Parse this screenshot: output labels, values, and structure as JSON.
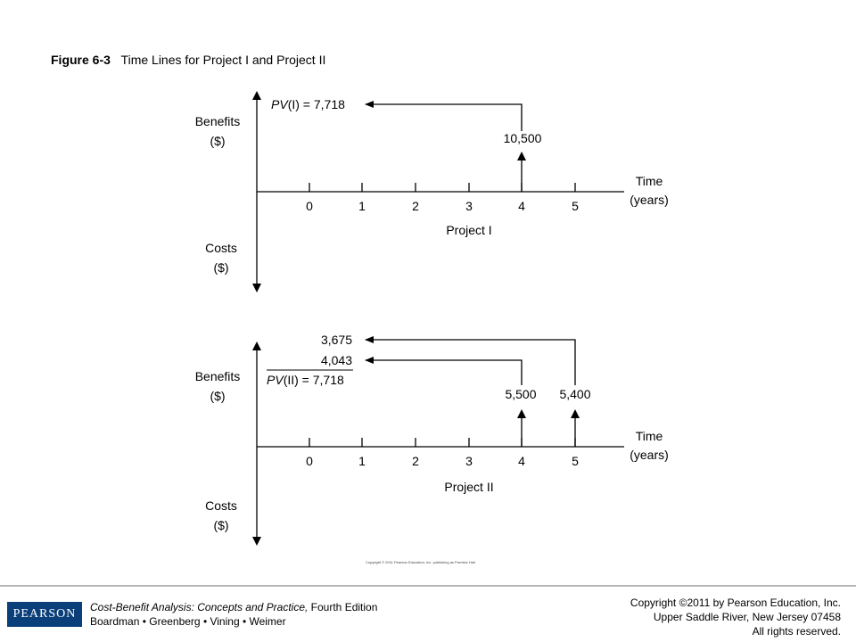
{
  "figure": {
    "number": "Figure 6-3",
    "title": "Time Lines for Project I and Project II"
  },
  "axis_labels": {
    "benefits_line1": "Benefits",
    "benefits_line2": "($)",
    "costs_line1": "Costs",
    "costs_line2": "($)",
    "time_line1": "Time",
    "time_line2": "(years)"
  },
  "ticks": [
    "0",
    "1",
    "2",
    "3",
    "4",
    "5"
  ],
  "project1": {
    "name": "Project I",
    "pv_label": "PV(I) = 7,718",
    "benefits": [
      {
        "year": 4,
        "amount_label": "10,500"
      }
    ]
  },
  "project2": {
    "name": "Project II",
    "pv_label": "PV(II) = 7,718",
    "discounted_labels": [
      "3,675",
      "4,043"
    ],
    "benefits": [
      {
        "year": 4,
        "amount_label": "5,500"
      },
      {
        "year": 5,
        "amount_label": "5,400"
      }
    ]
  },
  "copyright_small": "Copyright © 2011 Pearson Education, Inc. publishing as Prentice Hall",
  "footer": {
    "logo_text": "PEARSON",
    "book_title": "Cost-Benefit Analysis: Concepts and Practice,",
    "edition": " Fourth Edition",
    "authors": "Boardman • Greenberg • Vining • Weimer",
    "copyright_line1": "Copyright ©2011 by Pearson Education, Inc.",
    "copyright_line2": "Upper Saddle River, New Jersey 07458",
    "copyright_line3": "All rights reserved."
  },
  "colors": {
    "pearson_blue": "#0a3f7a",
    "footer_rule": "#b7b7b7"
  }
}
